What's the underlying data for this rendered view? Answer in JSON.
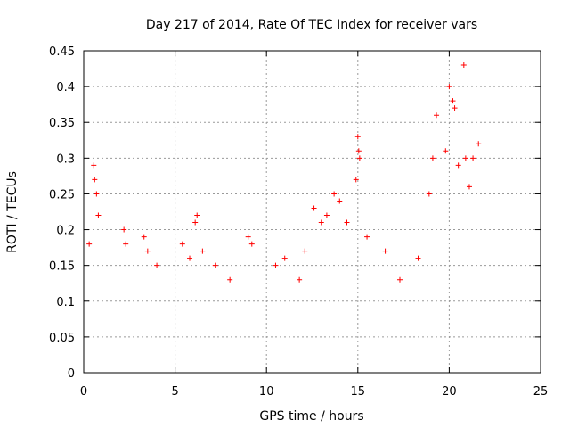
{
  "chart_data": {
    "type": "scatter",
    "title": "Day 217 of 2014, Rate Of TEC Index for receiver vars",
    "xlabel": "GPS time / hours",
    "ylabel": "ROTI / TECUs",
    "xlim": [
      0,
      25
    ],
    "ylim": [
      0,
      0.45
    ],
    "xticks": [
      "0",
      "5",
      "10",
      "15",
      "20",
      "25"
    ],
    "yticks": [
      "0",
      "0.05",
      "0.1",
      "0.15",
      "0.2",
      "0.25",
      "0.3",
      "0.35",
      "0.4",
      "0.45"
    ],
    "grid": true,
    "marker": "+",
    "color": "#ff0000",
    "series": [
      {
        "name": "vars",
        "x": [
          0.3,
          0.55,
          0.6,
          0.7,
          0.8,
          2.2,
          2.3,
          3.3,
          3.5,
          4.0,
          5.4,
          5.8,
          6.1,
          6.2,
          6.5,
          7.2,
          8.0,
          9.0,
          9.2,
          10.5,
          11.0,
          11.8,
          12.1,
          12.6,
          13.0,
          13.3,
          13.7,
          14.0,
          14.4,
          14.9,
          15.0,
          15.05,
          15.1,
          15.5,
          16.5,
          17.3,
          18.3,
          18.9,
          19.1,
          19.3,
          19.8,
          20.0,
          20.2,
          20.3,
          20.5,
          20.8,
          20.9,
          21.1,
          21.3,
          21.6
        ],
        "y": [
          0.18,
          0.29,
          0.27,
          0.25,
          0.22,
          0.2,
          0.18,
          0.19,
          0.17,
          0.15,
          0.18,
          0.16,
          0.21,
          0.22,
          0.17,
          0.15,
          0.13,
          0.19,
          0.18,
          0.15,
          0.16,
          0.13,
          0.17,
          0.23,
          0.21,
          0.22,
          0.25,
          0.24,
          0.21,
          0.27,
          0.33,
          0.31,
          0.3,
          0.19,
          0.17,
          0.13,
          0.16,
          0.25,
          0.3,
          0.36,
          0.31,
          0.4,
          0.38,
          0.37,
          0.29,
          0.43,
          0.3,
          0.26,
          0.3,
          0.32
        ]
      }
    ]
  }
}
